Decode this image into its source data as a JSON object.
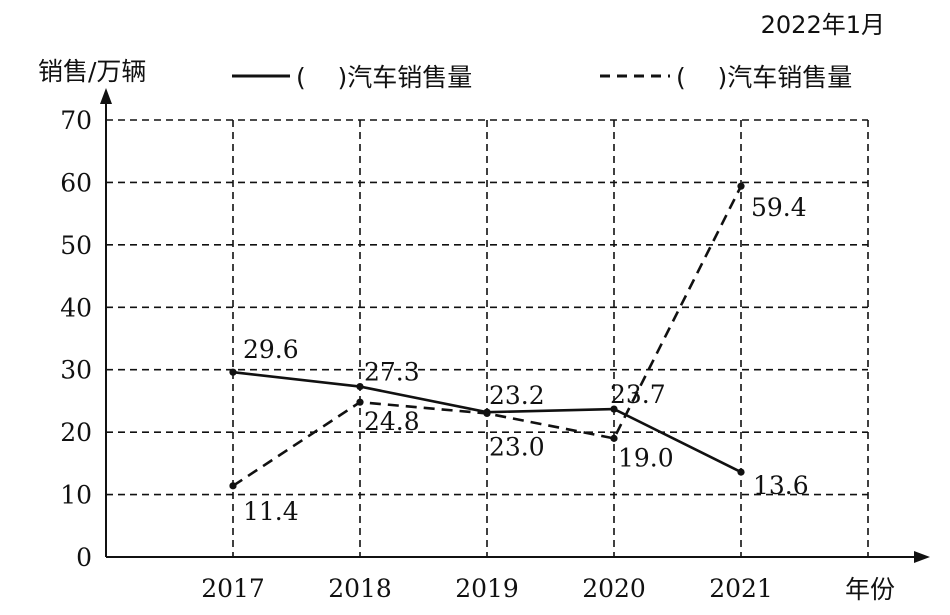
{
  "chart_data": {
    "type": "line",
    "date_note": "2022年1月",
    "ylabel": "销售/万辆",
    "xlabel": "年份",
    "categories": [
      "2017",
      "2018",
      "2019",
      "2020",
      "2021"
    ],
    "x_extra_gridline": true,
    "ylim": [
      0,
      70
    ],
    "yticks": [
      0,
      10,
      20,
      30,
      40,
      50,
      60,
      70
    ],
    "grid": true,
    "legend_position": "top",
    "series": [
      {
        "name": "(    )汽车销售量",
        "style": "solid",
        "color": "#111111",
        "values": [
          29.6,
          27.3,
          23.2,
          23.7,
          13.6
        ],
        "labels": [
          "29.6",
          "27.3",
          "23.2",
          "23.7",
          "13.6"
        ]
      },
      {
        "name": "(    )汽车销售量",
        "style": "dashed",
        "color": "#111111",
        "values": [
          11.4,
          24.8,
          23.0,
          19.0,
          59.4
        ],
        "labels": [
          "11.4",
          "24.8",
          "23.0",
          "19.0",
          "59.4"
        ]
      }
    ]
  }
}
